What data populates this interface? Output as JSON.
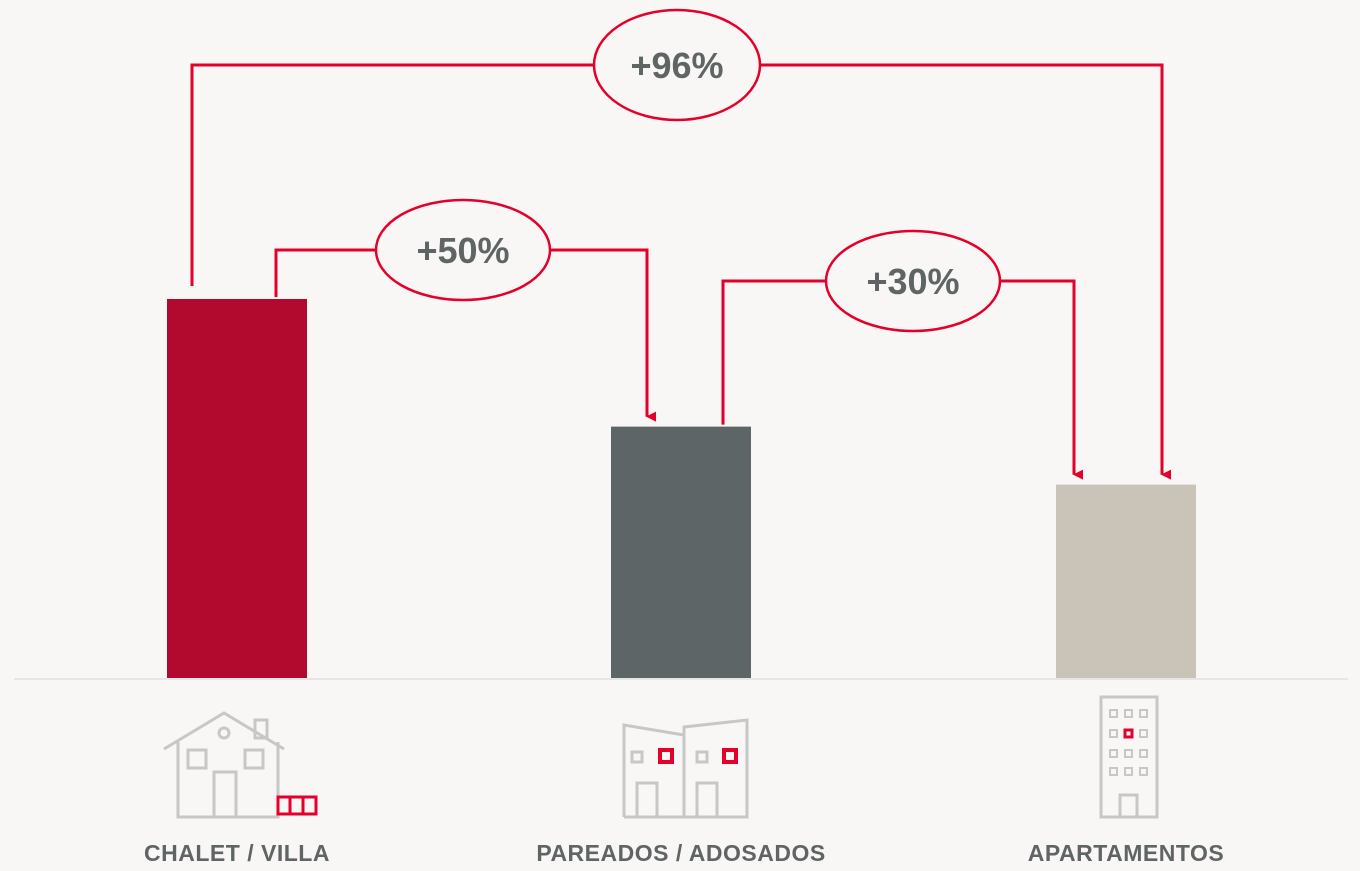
{
  "chart_data": {
    "type": "bar",
    "categories": [
      "CHALET / VILLA",
      "PAREADOS / ADOSADOS",
      "APARTAMENTOS"
    ],
    "values": [
      196,
      130,
      100
    ],
    "ylim": [
      0,
      196
    ],
    "colors": [
      "#b10a2e",
      "#5d6566",
      "#cac3b7"
    ],
    "annotations": [
      {
        "from": "CHALET / VILLA",
        "to": "APARTAMENTOS",
        "label": "+96%"
      },
      {
        "from": "CHALET / VILLA",
        "to": "PAREADOS / ADOSADOS",
        "label": "+50%"
      },
      {
        "from": "PAREADOS / ADOSADOS",
        "to": "APARTAMENTOS",
        "label": "+30%"
      }
    ],
    "icons": [
      "house-icon",
      "semi-detached-houses-icon",
      "apartment-building-icon"
    ]
  },
  "style": {
    "accent": "#e4002b",
    "icon_color": "#c7c7c7",
    "label_color": "#5f6465",
    "baseline_color": "#e6e6e6"
  }
}
